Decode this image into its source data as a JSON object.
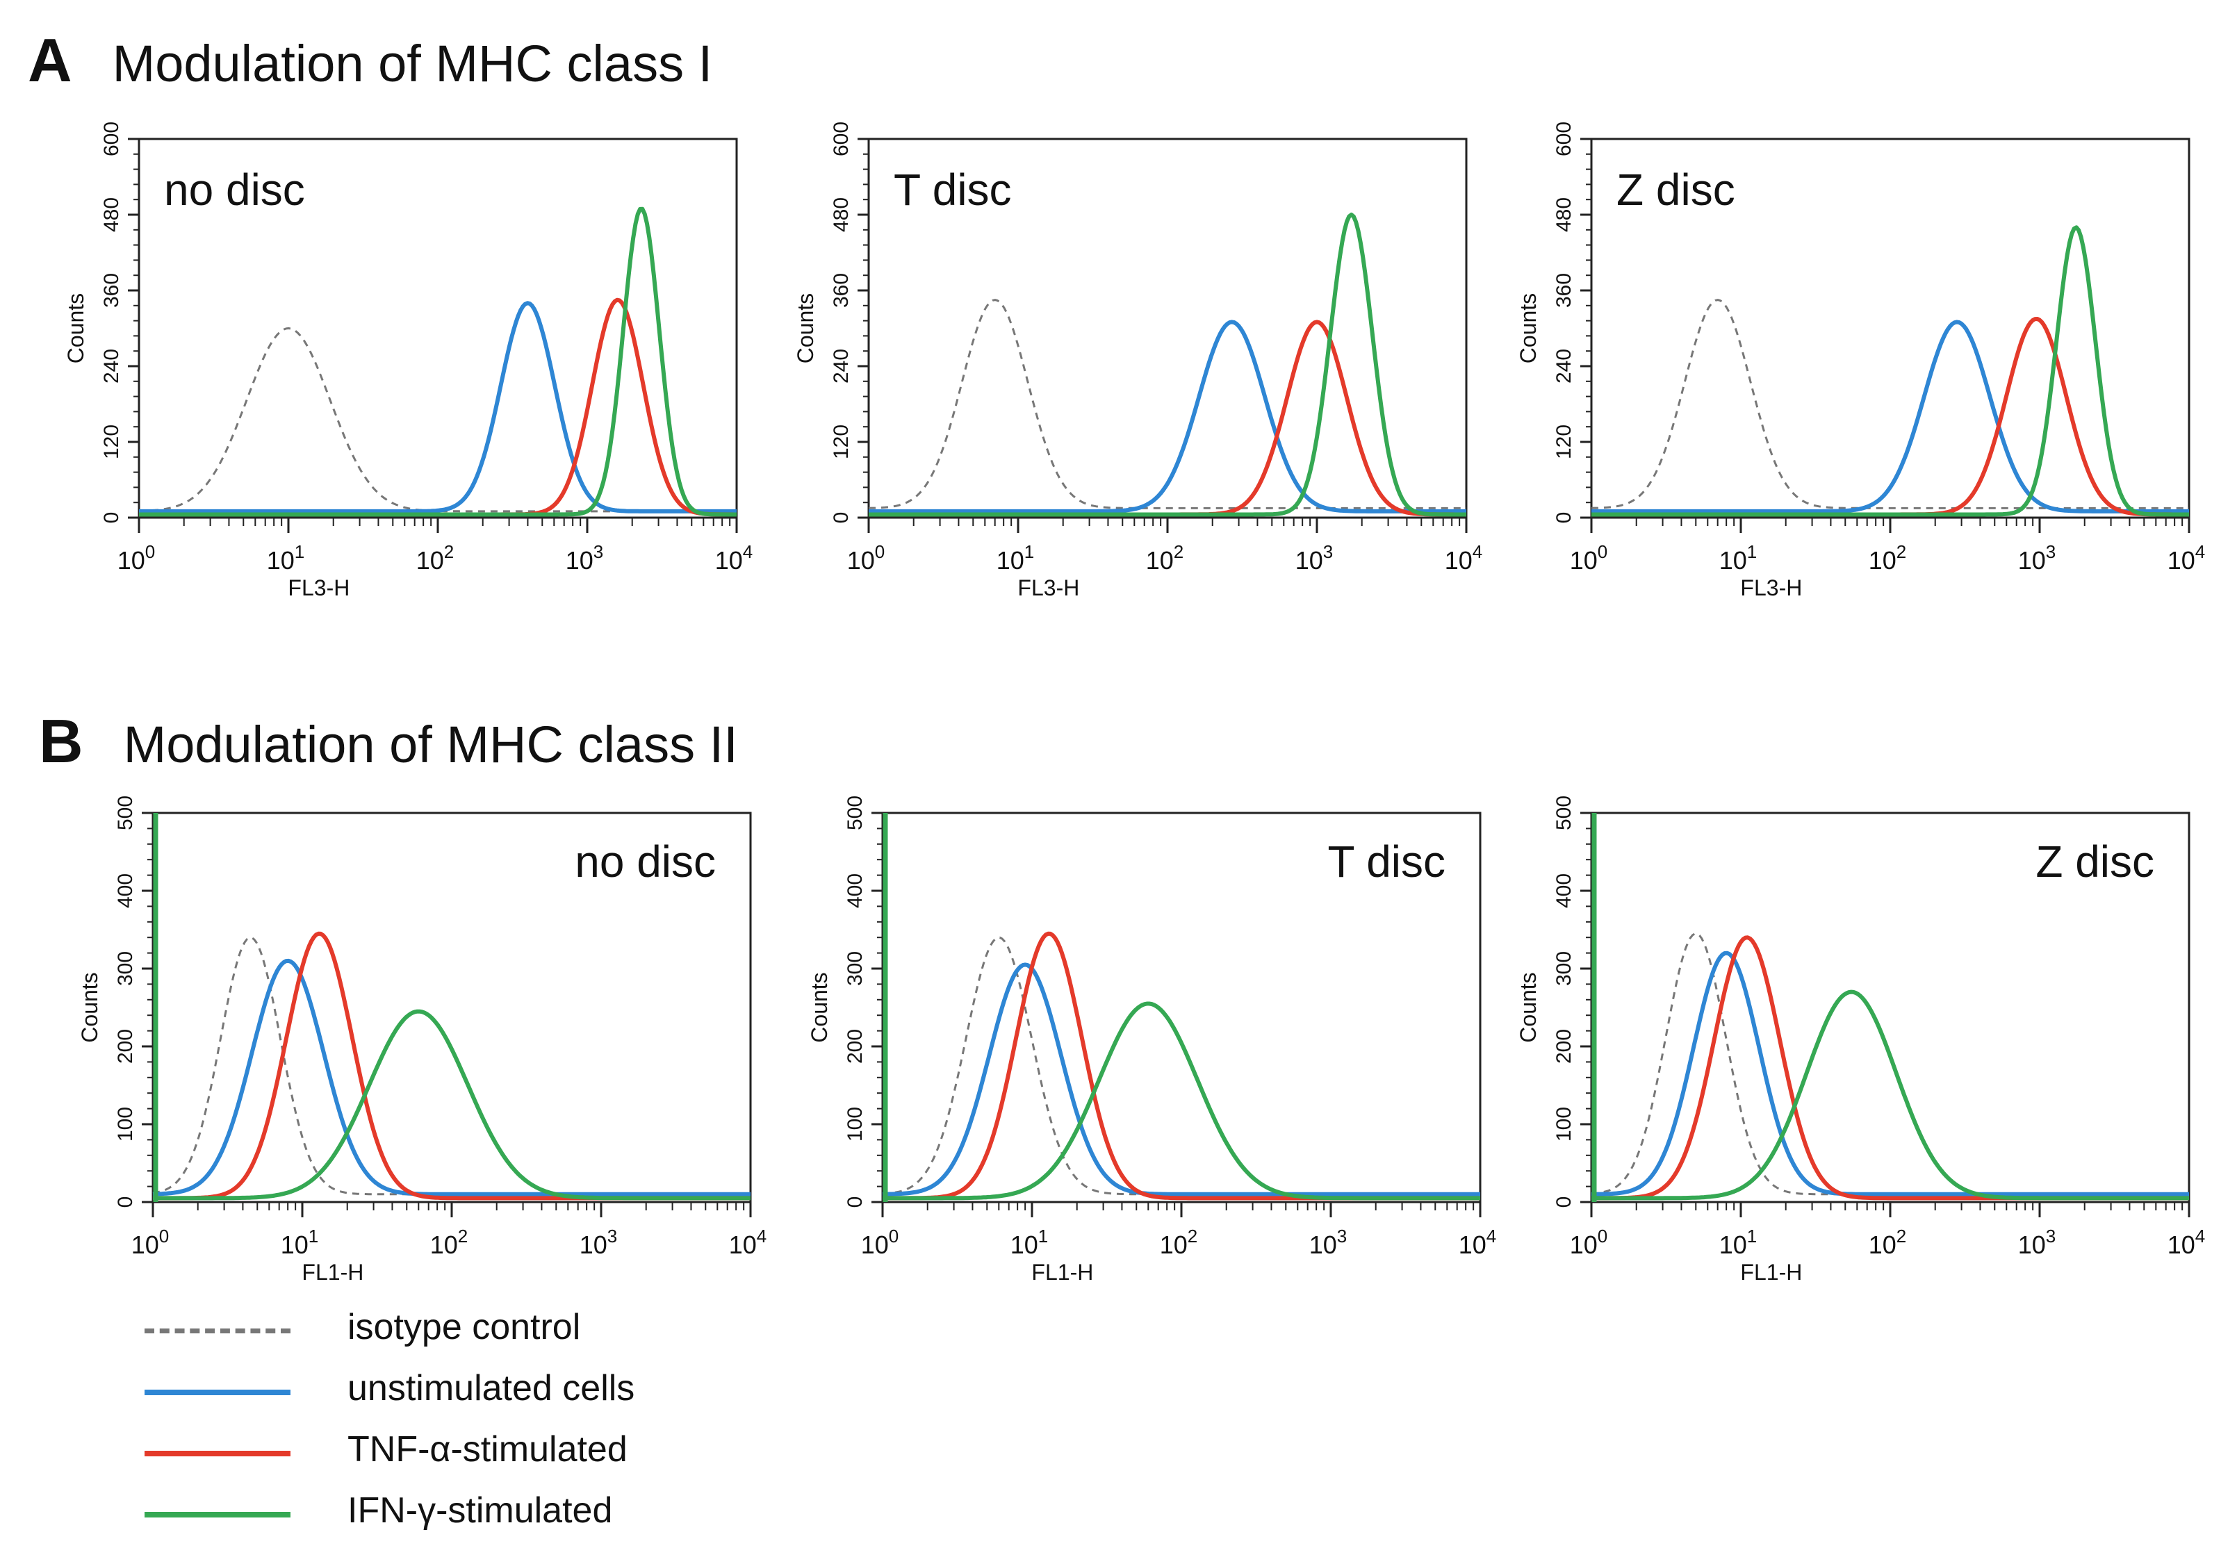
{
  "panels": [
    {
      "letter": "A",
      "title": "Modulation of MHC class I"
    },
    {
      "letter": "B",
      "title": "Modulation of MHC class II"
    }
  ],
  "legend": [
    {
      "key": "isotype",
      "label": "isotype control",
      "color": "#777777",
      "dashed": true
    },
    {
      "key": "unstim",
      "label": "unstimulated cells",
      "color": "#2e86d4",
      "dashed": false
    },
    {
      "key": "tnf",
      "label": "TNF-α-stimulated",
      "color": "#e43a2a",
      "dashed": false
    },
    {
      "key": "ifn",
      "label": "IFN-γ-stimulated",
      "color": "#35a853",
      "dashed": false
    }
  ],
  "chart_data": [
    {
      "type": "line",
      "panel": "A",
      "title": "no disc",
      "xlabel": "FL3-H",
      "ylabel": "Counts",
      "xscale": "log",
      "xlim": [
        1,
        10000
      ],
      "ylim": [
        0,
        600
      ],
      "xticks": [
        1,
        10,
        100,
        1000,
        10000
      ],
      "yticks": [
        0,
        120,
        240,
        360,
        480,
        600
      ],
      "series": [
        {
          "name": "isotype control",
          "peak_x": 10,
          "peak_y": 300,
          "width": 0.28,
          "baseline": 10
        },
        {
          "name": "unstimulated cells",
          "peak_x": 400,
          "peak_y": 340,
          "width": 0.18,
          "baseline": 10
        },
        {
          "name": "TNF-α-stimulated",
          "peak_x": 1600,
          "peak_y": 345,
          "width": 0.17,
          "baseline": 5
        },
        {
          "name": "IFN-γ-stimulated",
          "peak_x": 2300,
          "peak_y": 490,
          "width": 0.12,
          "baseline": 5
        }
      ]
    },
    {
      "type": "line",
      "panel": "A",
      "title": "T disc",
      "xlabel": "FL3-H",
      "ylabel": "Counts",
      "xscale": "log",
      "xlim": [
        1,
        10000
      ],
      "ylim": [
        0,
        600
      ],
      "xticks": [
        1,
        10,
        100,
        1000,
        10000
      ],
      "yticks": [
        0,
        120,
        240,
        360,
        480,
        600
      ],
      "series": [
        {
          "name": "isotype control",
          "peak_x": 7,
          "peak_y": 345,
          "width": 0.22,
          "baseline": 15
        },
        {
          "name": "unstimulated cells",
          "peak_x": 270,
          "peak_y": 310,
          "width": 0.22,
          "baseline": 10
        },
        {
          "name": "TNF-α-stimulated",
          "peak_x": 1000,
          "peak_y": 310,
          "width": 0.2,
          "baseline": 5
        },
        {
          "name": "IFN-γ-stimulated",
          "peak_x": 1700,
          "peak_y": 480,
          "width": 0.14,
          "baseline": 5
        }
      ]
    },
    {
      "type": "line",
      "panel": "A",
      "title": "Z disc",
      "xlabel": "FL3-H",
      "ylabel": "Counts",
      "xscale": "log",
      "xlim": [
        1,
        10000
      ],
      "ylim": [
        0,
        600
      ],
      "xticks": [
        1,
        10,
        100,
        1000,
        10000
      ],
      "yticks": [
        0,
        120,
        240,
        360,
        480,
        600
      ],
      "series": [
        {
          "name": "isotype control",
          "peak_x": 7,
          "peak_y": 345,
          "width": 0.22,
          "baseline": 15
        },
        {
          "name": "unstimulated cells",
          "peak_x": 280,
          "peak_y": 310,
          "width": 0.22,
          "baseline": 10
        },
        {
          "name": "TNF-α-stimulated",
          "peak_x": 950,
          "peak_y": 315,
          "width": 0.2,
          "baseline": 5
        },
        {
          "name": "IFN-γ-stimulated",
          "peak_x": 1750,
          "peak_y": 460,
          "width": 0.13,
          "baseline": 5
        }
      ]
    },
    {
      "type": "line",
      "panel": "B",
      "title": "no disc",
      "xlabel": "FL1-H",
      "ylabel": "Counts",
      "xscale": "log",
      "xlim": [
        1,
        10000
      ],
      "ylim": [
        0,
        500
      ],
      "xticks": [
        1,
        10,
        100,
        1000,
        10000
      ],
      "yticks": [
        0,
        100,
        200,
        300,
        400,
        500
      ],
      "series": [
        {
          "name": "isotype control",
          "peak_x": 4.5,
          "peak_y": 340,
          "width": 0.2,
          "baseline": 10
        },
        {
          "name": "unstimulated cells",
          "peak_x": 8,
          "peak_y": 310,
          "width": 0.24,
          "baseline": 10
        },
        {
          "name": "TNF-α-stimulated",
          "peak_x": 13,
          "peak_y": 345,
          "width": 0.22,
          "baseline": 5
        },
        {
          "name": "IFN-γ-stimulated",
          "peak_x": 60,
          "peak_y": 245,
          "width": 0.33,
          "baseline": 5
        }
      ]
    },
    {
      "type": "line",
      "panel": "B",
      "title": "T disc",
      "xlabel": "FL1-H",
      "ylabel": "Counts",
      "xscale": "log",
      "xlim": [
        1,
        10000
      ],
      "ylim": [
        0,
        500
      ],
      "xticks": [
        1,
        10,
        100,
        1000,
        10000
      ],
      "yticks": [
        0,
        100,
        200,
        300,
        400,
        500
      ],
      "series": [
        {
          "name": "isotype control",
          "peak_x": 6,
          "peak_y": 340,
          "width": 0.22,
          "baseline": 10
        },
        {
          "name": "unstimulated cells",
          "peak_x": 9,
          "peak_y": 305,
          "width": 0.24,
          "baseline": 10
        },
        {
          "name": "TNF-α-stimulated",
          "peak_x": 13,
          "peak_y": 345,
          "width": 0.22,
          "baseline": 5
        },
        {
          "name": "IFN-γ-stimulated",
          "peak_x": 60,
          "peak_y": 255,
          "width": 0.33,
          "baseline": 5
        }
      ]
    },
    {
      "type": "line",
      "panel": "B",
      "title": "Z disc",
      "xlabel": "FL1-H",
      "ylabel": "Counts",
      "xscale": "log",
      "xlim": [
        1,
        10000
      ],
      "ylim": [
        0,
        500
      ],
      "xticks": [
        1,
        10,
        100,
        1000,
        10000
      ],
      "yticks": [
        0,
        100,
        200,
        300,
        400,
        500
      ],
      "series": [
        {
          "name": "isotype control",
          "peak_x": 5,
          "peak_y": 345,
          "width": 0.2,
          "baseline": 10
        },
        {
          "name": "unstimulated cells",
          "peak_x": 8,
          "peak_y": 320,
          "width": 0.22,
          "baseline": 10
        },
        {
          "name": "TNF-α-stimulated",
          "peak_x": 11,
          "peak_y": 340,
          "width": 0.22,
          "baseline": 5
        },
        {
          "name": "IFN-γ-stimulated",
          "peak_x": 55,
          "peak_y": 270,
          "width": 0.3,
          "baseline": 5
        }
      ]
    }
  ]
}
